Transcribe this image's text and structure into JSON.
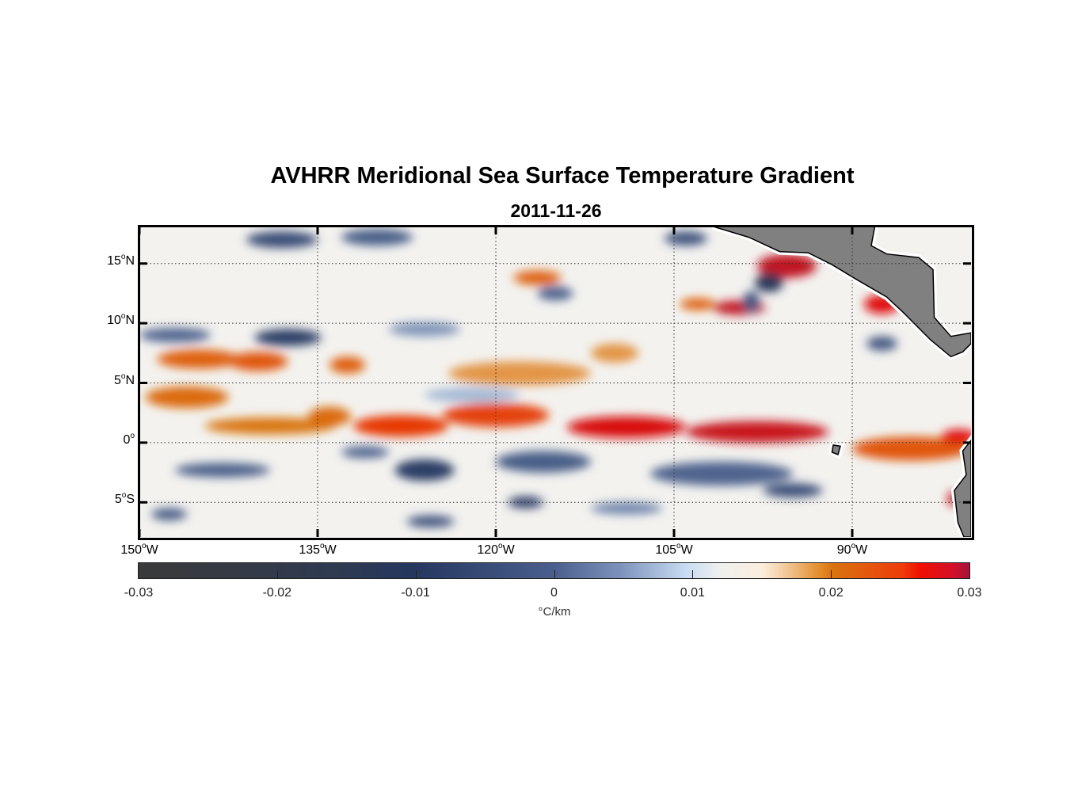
{
  "chart_data": {
    "type": "heatmap",
    "title": "AVHRR Meridional Sea Surface Temperature Gradient",
    "subtitle": "2011-11-26",
    "lon_range": [
      -150,
      -80
    ],
    "lat_range": [
      -7.9,
      18.1
    ],
    "x_ticks": [
      {
        "value": -150,
        "num": "150",
        "deg": "o",
        "hemi": "W"
      },
      {
        "value": -135,
        "num": "135",
        "deg": "o",
        "hemi": "W"
      },
      {
        "value": -120,
        "num": "120",
        "deg": "o",
        "hemi": "W"
      },
      {
        "value": -105,
        "num": "105",
        "deg": "o",
        "hemi": "W"
      },
      {
        "value": -90,
        "num": "90",
        "deg": "o",
        "hemi": "W"
      }
    ],
    "y_ticks": [
      {
        "value": 15,
        "num": "15",
        "deg": "o",
        "hemi": "N"
      },
      {
        "value": 10,
        "num": "10",
        "deg": "o",
        "hemi": "N"
      },
      {
        "value": 5,
        "num": "5",
        "deg": "o",
        "hemi": "N"
      },
      {
        "value": 0,
        "num": "0",
        "deg": "o",
        "hemi": ""
      },
      {
        "value": -5,
        "num": "5",
        "deg": "o",
        "hemi": "S"
      }
    ],
    "grid": true,
    "colorbar": {
      "range": [
        -0.03,
        0.03
      ],
      "ticks": [
        "-0.03",
        "-0.02",
        "-0.01",
        "0",
        "0.01",
        "0.02",
        "0.03"
      ],
      "tick_values": [
        -0.03,
        -0.02,
        -0.01,
        0,
        0.01,
        0.02,
        0.03
      ],
      "label": "°C/km",
      "position": "bottom"
    },
    "land_color": "#808080",
    "land": [
      [
        [
          -101.7,
          18.1
        ],
        [
          -98.7,
          17.2
        ],
        [
          -96.1,
          16.0
        ],
        [
          -93.7,
          15.9
        ],
        [
          -91.7,
          14.9
        ],
        [
          -89.7,
          13.7
        ],
        [
          -87.1,
          12.2
        ],
        [
          -85.7,
          10.9
        ],
        [
          -84.7,
          9.9
        ],
        [
          -83.4,
          8.6
        ],
        [
          -81.7,
          7.2
        ],
        [
          -80.7,
          7.6
        ],
        [
          -80,
          8.3
        ],
        [
          -80,
          9.2
        ],
        [
          -81.7,
          8.9
        ],
        [
          -83.1,
          10.5
        ],
        [
          -83.2,
          14.5
        ],
        [
          -84.4,
          15.5
        ],
        [
          -87.1,
          15.8
        ],
        [
          -88.4,
          16.5
        ],
        [
          -88.1,
          18.1
        ]
      ],
      [
        [
          -80,
          0.2
        ],
        [
          -80.7,
          -0.7
        ],
        [
          -80.4,
          -2.7
        ],
        [
          -81.4,
          -4.0
        ],
        [
          -81.1,
          -6.7
        ],
        [
          -80.6,
          -7.9
        ],
        [
          -80,
          -7.9
        ]
      ],
      [
        [
          -91.6,
          -0.2
        ],
        [
          -91.0,
          -0.3
        ],
        [
          -91.2,
          -1.0
        ],
        [
          -91.7,
          -0.8
        ]
      ]
    ],
    "features": [
      {
        "lon": -146,
        "lat": 3.8,
        "value": 0.011,
        "rlon": 3.5,
        "rlat": 0.9
      },
      {
        "lon": -139,
        "lat": 1.4,
        "value": 0.01,
        "rlon": 5.5,
        "rlat": 0.7
      },
      {
        "lon": -134,
        "lat": 2.2,
        "value": 0.011,
        "rlon": 1.8,
        "rlat": 0.8
      },
      {
        "lon": -128,
        "lat": 1.4,
        "value": 0.016,
        "rlon": 4,
        "rlat": 0.9
      },
      {
        "lon": -120,
        "lat": 2.3,
        "value": 0.015,
        "rlon": 4.5,
        "rlat": 1.0
      },
      {
        "lon": -109,
        "lat": 1.3,
        "value": 0.023,
        "rlon": 5,
        "rlat": 0.9
      },
      {
        "lon": -98,
        "lat": 0.9,
        "value": 0.025,
        "rlon": 6,
        "rlat": 0.9
      },
      {
        "lon": -85,
        "lat": -0.5,
        "value": 0.013,
        "rlon": 5,
        "rlat": 1.0
      },
      {
        "lon": -81,
        "lat": 0.5,
        "value": 0.022,
        "rlon": 1.5,
        "rlat": 0.6
      },
      {
        "lon": -145,
        "lat": 7.0,
        "value": 0.012,
        "rlon": 3.5,
        "rlat": 0.8
      },
      {
        "lon": -140,
        "lat": 6.8,
        "value": 0.013,
        "rlon": 2.5,
        "rlat": 0.8
      },
      {
        "lon": -132.5,
        "lat": 6.5,
        "value": 0.012,
        "rlon": 1.5,
        "rlat": 0.7
      },
      {
        "lon": -118,
        "lat": 5.8,
        "value": 0.008,
        "rlon": 6,
        "rlat": 1.0
      },
      {
        "lon": -110,
        "lat": 7.5,
        "value": 0.008,
        "rlon": 2,
        "rlat": 0.8
      },
      {
        "lon": -116.5,
        "lat": 13.8,
        "value": 0.012,
        "rlon": 2,
        "rlat": 0.6
      },
      {
        "lon": -95.5,
        "lat": 14.8,
        "value": 0.026,
        "rlon": 2.5,
        "rlat": 1.0
      },
      {
        "lon": -99.5,
        "lat": 11.3,
        "value": 0.026,
        "rlon": 2.2,
        "rlat": 0.6
      },
      {
        "lon": -103,
        "lat": 11.6,
        "value": 0.012,
        "rlon": 1.5,
        "rlat": 0.5
      },
      {
        "lon": -87.5,
        "lat": 11.6,
        "value": 0.022,
        "rlon": 1.5,
        "rlat": 0.8
      },
      {
        "lon": -81.5,
        "lat": -4.7,
        "value": 0.025,
        "rlon": 0.5,
        "rlat": 0.6
      },
      {
        "lon": -147,
        "lat": 9.0,
        "value": -0.012,
        "rlon": 3,
        "rlat": 0.6
      },
      {
        "lon": -137.5,
        "lat": 8.8,
        "value": -0.019,
        "rlon": 2.8,
        "rlat": 0.7
      },
      {
        "lon": -138,
        "lat": 17.0,
        "value": -0.016,
        "rlon": 3,
        "rlat": 0.7
      },
      {
        "lon": -130,
        "lat": 17.2,
        "value": -0.013,
        "rlon": 3,
        "rlat": 0.7
      },
      {
        "lon": -115,
        "lat": 12.5,
        "value": -0.012,
        "rlon": 1.5,
        "rlat": 0.6
      },
      {
        "lon": -97,
        "lat": 13.4,
        "value": -0.022,
        "rlon": 1.2,
        "rlat": 0.8
      },
      {
        "lon": -98.5,
        "lat": 11.8,
        "value": -0.014,
        "rlon": 0.7,
        "rlat": 0.9
      },
      {
        "lon": -104,
        "lat": 17.1,
        "value": -0.015,
        "rlon": 1.8,
        "rlat": 0.6
      },
      {
        "lon": -87.5,
        "lat": 8.3,
        "value": -0.014,
        "rlon": 1.3,
        "rlat": 0.6
      },
      {
        "lon": -126,
        "lat": -2.3,
        "value": -0.019,
        "rlon": 2.5,
        "rlat": 0.9
      },
      {
        "lon": -143,
        "lat": -2.3,
        "value": -0.013,
        "rlon": 4,
        "rlat": 0.6
      },
      {
        "lon": -116,
        "lat": -1.6,
        "value": -0.013,
        "rlon": 4,
        "rlat": 0.9
      },
      {
        "lon": -101,
        "lat": -2.6,
        "value": -0.012,
        "rlon": 6,
        "rlat": 1.0
      },
      {
        "lon": -95,
        "lat": -4.0,
        "value": -0.016,
        "rlon": 2.5,
        "rlat": 0.6
      },
      {
        "lon": -117.5,
        "lat": -5.0,
        "value": -0.018,
        "rlon": 1.5,
        "rlat": 0.5
      },
      {
        "lon": -125.5,
        "lat": -6.6,
        "value": -0.015,
        "rlon": 2,
        "rlat": 0.5
      },
      {
        "lon": -147.5,
        "lat": -6.0,
        "value": -0.014,
        "rlon": 1.5,
        "rlat": 0.5
      },
      {
        "lon": -131,
        "lat": -0.8,
        "value": -0.012,
        "rlon": 2,
        "rlat": 0.5
      },
      {
        "lon": -109,
        "lat": -5.5,
        "value": -0.009,
        "rlon": 3,
        "rlat": 0.5
      },
      {
        "lon": -122,
        "lat": 4.0,
        "value": -0.006,
        "rlon": 4,
        "rlat": 0.6
      },
      {
        "lon": -126,
        "lat": 9.5,
        "value": -0.008,
        "rlon": 3,
        "rlat": 0.6
      }
    ]
  }
}
